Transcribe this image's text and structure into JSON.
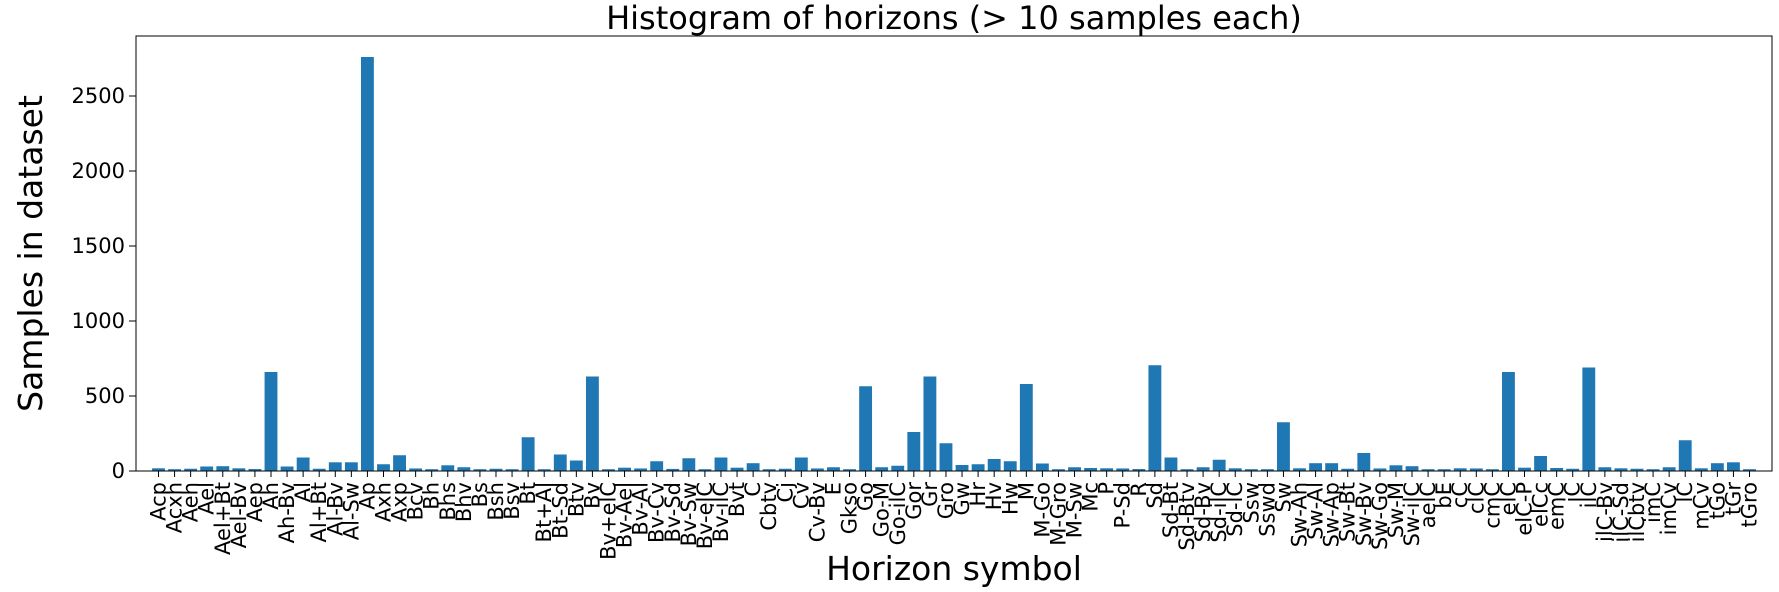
{
  "chart_data": {
    "type": "bar",
    "title": "Histogram of horizons (> 10 samples each)",
    "xlabel": "Horizon symbol",
    "ylabel": "Samples in dataset",
    "ylim": [
      0,
      2900
    ],
    "yticks": [
      0,
      500,
      1000,
      1500,
      2000,
      2500
    ],
    "grid": false,
    "bar_color": "#1f77b4",
    "categories": [
      "Acp",
      "Acxh",
      "Aeh",
      "Ael",
      "Ael+Bt",
      "Ael-Bv",
      "Aep",
      "Ah",
      "Ah-Bv",
      "Al",
      "Al+Bt",
      "Al-Bv",
      "Al-Sw",
      "Ap",
      "Axh",
      "Axp",
      "Bcv",
      "Bh",
      "Bhs",
      "Bhv",
      "Bs",
      "Bsh",
      "Bsv",
      "Bt",
      "Bt+Al",
      "Bt-Sd",
      "Btv",
      "Bv",
      "Bv+elC",
      "Bv-Ael",
      "Bv-Al",
      "Bv-Cv",
      "Bv-Sd",
      "Bv-Sw",
      "Bv-elC",
      "Bv-ilC",
      "Bvt",
      "C",
      "Cbtv",
      "Cj",
      "Cv",
      "Cv-Bv",
      "E",
      "Gkso",
      "Go",
      "Go-M",
      "Go-ilC",
      "Gor",
      "Gr",
      "Gro",
      "Gw",
      "Hr",
      "Hv",
      "Hw",
      "M",
      "M-Go",
      "M-Gro",
      "M-Sw",
      "Mc",
      "P",
      "P-Sd",
      "R",
      "Sd",
      "Sd-Bt",
      "Sd-Btv",
      "Sd-Bv",
      "Sd-ilC",
      "Sd-lC",
      "Ssw",
      "Sswd",
      "Sw",
      "Sw-Ah",
      "Sw-Al",
      "Sw-Ap",
      "Sw-Bt",
      "Sw-Bv",
      "Sw-Go",
      "Sw-M",
      "Sw-ilC",
      "aelC",
      "bE",
      "cC",
      "clC",
      "cmC",
      "elC",
      "elC-P",
      "elCc",
      "emC",
      "iC",
      "ilC",
      "ilC-Bv",
      "ilC-Sd",
      "ilCbtv",
      "imC",
      "imCv",
      "lC",
      "mCv",
      "tGo",
      "tGr",
      "tGro"
    ],
    "values": [
      18,
      12,
      15,
      30,
      32,
      18,
      13,
      660,
      30,
      90,
      15,
      58,
      58,
      2760,
      45,
      105,
      17,
      12,
      38,
      25,
      12,
      15,
      12,
      225,
      12,
      110,
      70,
      630,
      12,
      22,
      17,
      65,
      14,
      85,
      12,
      90,
      22,
      52,
      12,
      15,
      90,
      17,
      25,
      12,
      565,
      25,
      35,
      260,
      630,
      185,
      40,
      45,
      80,
      65,
      580,
      50,
      12,
      25,
      20,
      18,
      17,
      13,
      705,
      90,
      12,
      25,
      75,
      18,
      12,
      12,
      325,
      18,
      52,
      52,
      15,
      120,
      17,
      38,
      32,
      12,
      12,
      18,
      17,
      12,
      660,
      22,
      100,
      20,
      15,
      690,
      25,
      18,
      15,
      12,
      25,
      205,
      18,
      52,
      58,
      12
    ]
  }
}
